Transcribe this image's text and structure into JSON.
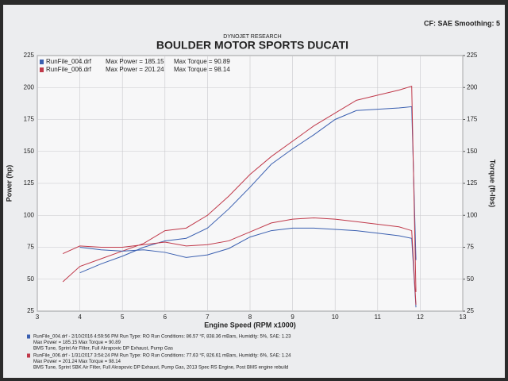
{
  "chart_data": {
    "type": "line",
    "header_right": "CF: SAE  Smoothing: 5",
    "subtitle": "DYNOJET RESEARCH",
    "title": "BOULDER MOTOR SPORTS DUCATI",
    "xlabel": "Engine Speed (RPM x1000)",
    "ylabel": "Power (hp)",
    "y2label": "Torque (ft-lbs)",
    "x": [
      3.6,
      4.0,
      4.5,
      5.0,
      5.5,
      6.0,
      6.5,
      7.0,
      7.5,
      8.0,
      8.5,
      9.0,
      9.5,
      10.0,
      10.5,
      11.0,
      11.5,
      11.8,
      11.9
    ],
    "xlim": [
      3,
      13
    ],
    "xticks": [
      3,
      4,
      5,
      6,
      7,
      8,
      9,
      10,
      11,
      12,
      13
    ],
    "ylim": [
      25,
      225
    ],
    "yticks": [
      25,
      50,
      75,
      100,
      125,
      150,
      175,
      200,
      225
    ],
    "y2lim": [
      25,
      225
    ],
    "y2ticks": [
      25,
      50,
      75,
      100,
      125,
      150,
      175,
      200,
      225
    ],
    "grid": true,
    "series": [
      {
        "name": "RunFile_004.drf",
        "color": "#3a5fb0",
        "values": [
          null,
          55,
          62,
          68,
          75,
          80,
          82,
          90,
          105,
          122,
          140,
          152,
          163,
          175,
          182,
          183,
          184,
          185,
          65
        ]
      },
      {
        "name": "RunFile_006.drf",
        "color": "#c0394a",
        "values": [
          48,
          60,
          66,
          72,
          78,
          88,
          90,
          100,
          115,
          132,
          146,
          158,
          170,
          180,
          190,
          194,
          198,
          201,
          40
        ]
      },
      {
        "color": "#3a5fb0",
        "axis": "y2",
        "values": [
          null,
          75,
          73,
          72,
          73,
          71,
          67,
          69,
          74,
          83,
          88,
          90,
          90,
          89,
          88,
          86,
          84,
          82,
          28
        ]
      },
      {
        "color": "#c0394a",
        "axis": "y2",
        "values": [
          70,
          76,
          75,
          75,
          77,
          79,
          76,
          77,
          80,
          87,
          94,
          97,
          98,
          97,
          95,
          93,
          91,
          88,
          30
        ]
      }
    ],
    "legend_notes": [
      [
        "Max Power = 185.15",
        "Max Torque = 90.89"
      ],
      [
        "Max Power = 201.24",
        "Max Torque = 98.14"
      ]
    ],
    "notes": [
      [
        "RunFile_004.drf - 2/10/2016 4:59:56 PM  Run Type: RO  Run Conditions: 86.57 °F, 838.36 mBars, Humidity: 5%, SAE: 1.23",
        "Max Power = 185.15  Max Torque = 90.89",
        "BMS Tune, Sprint Air Filter, Full Akrapovic DP Exhaust, Pump Gas"
      ],
      [
        "RunFile_006.drf - 1/31/2017 3:54:24 PM  Run Type: RO  Run Conditions: 77.63 °F, 826.61 mBars, Humidity: 6%, SAE: 1.24",
        "Max Power = 201.24  Max Torque = 98.14",
        "BMS Tune, Sprint SBK Air Filter, Full Akrapovic DP Exhaust, Pump Gas, 2013 Spec RS Engine, Post BMS engine rebuild"
      ]
    ]
  }
}
